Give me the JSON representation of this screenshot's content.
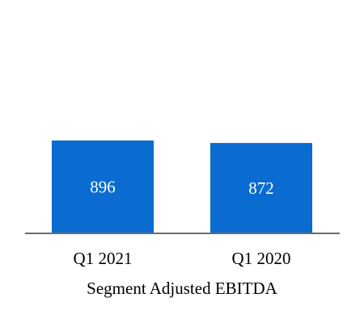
{
  "chart_data": {
    "type": "bar",
    "categories": [
      "Q1 2021",
      "Q1 2020"
    ],
    "values": [
      896,
      872
    ],
    "data_labels": [
      "896",
      "872"
    ],
    "title": "",
    "xlabel": "Segment Adjusted EBITDA",
    "ylabel": "",
    "ylim": [
      0,
      1650
    ],
    "grid": false,
    "legend": "none",
    "bar_color": "#0a6bd0",
    "axis_color": "#6b6b6b",
    "label_color": "#ffffff"
  }
}
